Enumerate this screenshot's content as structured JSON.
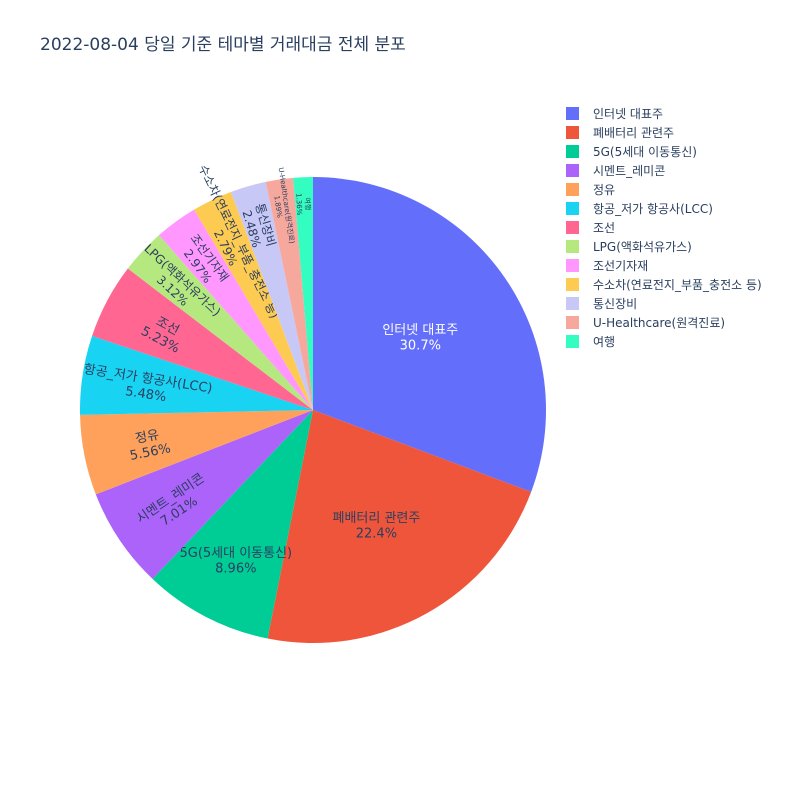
{
  "chart_data": {
    "type": "pie",
    "title": "2022-08-04 당일 기준 테마별 거래대금 전체 분포",
    "slices": [
      {
        "label": "인터넷 대표주",
        "percent_text": "30.7%",
        "value": 30.7,
        "color": "#636efa"
      },
      {
        "label": "폐배터리 관련주",
        "percent_text": "22.4%",
        "value": 22.4,
        "color": "#EF553B"
      },
      {
        "label": "5G(5세대 이동통신)",
        "percent_text": "8.96%",
        "value": 8.96,
        "color": "#00cc96"
      },
      {
        "label": "시멘트_레미콘",
        "percent_text": "7.01%",
        "value": 7.01,
        "color": "#ab63fa"
      },
      {
        "label": "정유",
        "percent_text": "5.56%",
        "value": 5.56,
        "color": "#FFA15A"
      },
      {
        "label": "항공_저가 항공사(LCC)",
        "percent_text": "5.48%",
        "value": 5.48,
        "color": "#19d3f3"
      },
      {
        "label": "조선",
        "percent_text": "5.23%",
        "value": 5.23,
        "color": "#FF6692"
      },
      {
        "label": "LPG(액화석유가스)",
        "percent_text": "3.12%",
        "value": 3.12,
        "color": "#B6E880"
      },
      {
        "label": "조선기자재",
        "percent_text": "2.97%",
        "value": 2.97,
        "color": "#FF97FF"
      },
      {
        "label": "수소차(연료전지_부품_충전소 등)",
        "percent_text": "2.79%",
        "value": 2.79,
        "color": "#FECB52"
      },
      {
        "label": "통신장비",
        "percent_text": "2.48%",
        "value": 2.48,
        "color": "#c8c8f7"
      },
      {
        "label": "U-Healthcare(원격진료)",
        "percent_text": "1.89%",
        "value": 1.89,
        "color": "#f7a89d"
      },
      {
        "label": "여행",
        "percent_text": "1.36%",
        "value": 1.36,
        "color": "#33fdc0"
      }
    ],
    "legend_position": "top-right",
    "direction": "clockwise",
    "start": "12 o'clock"
  }
}
